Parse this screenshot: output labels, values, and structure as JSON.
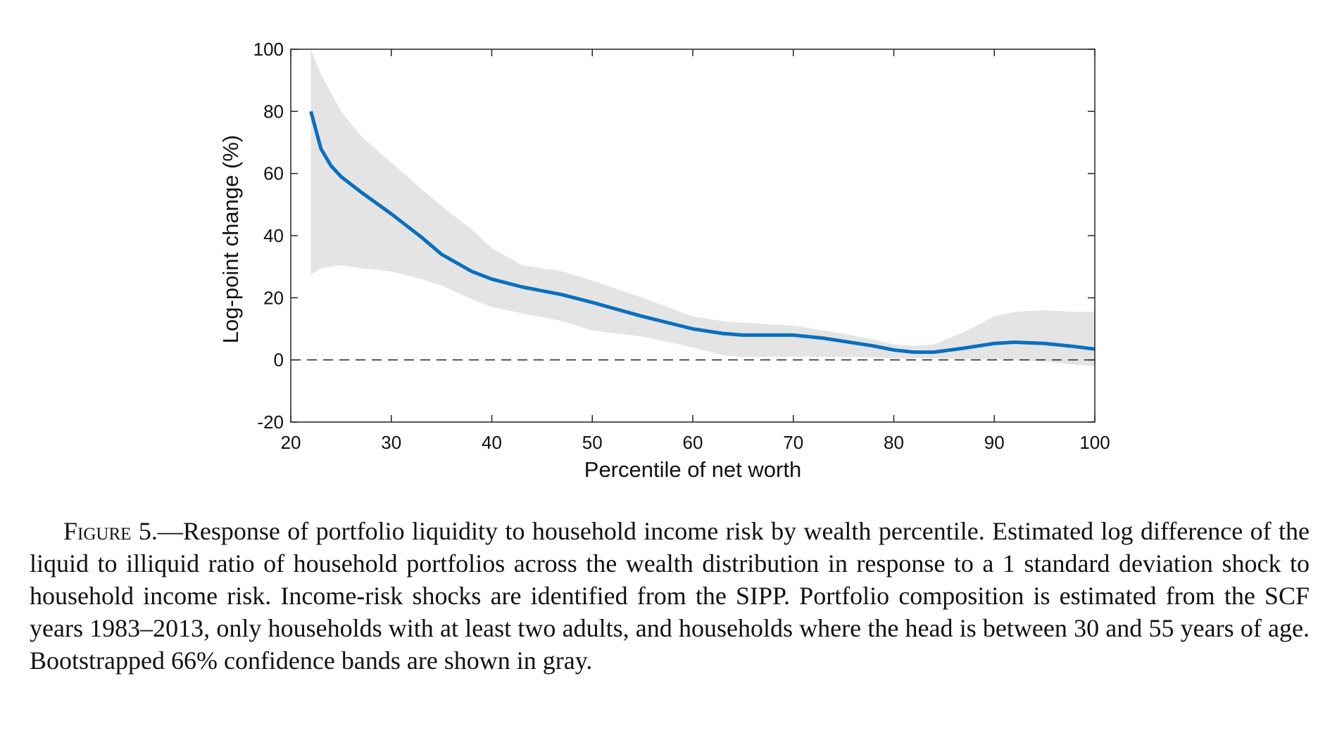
{
  "chart_data": {
    "type": "line",
    "xlabel": "Percentile of net worth",
    "ylabel": "Log-point change (%)",
    "x": [
      22,
      23,
      24,
      25,
      27,
      30,
      33,
      35,
      38,
      40,
      43,
      47,
      50,
      55,
      60,
      63,
      65,
      70,
      73,
      75,
      78,
      80,
      82,
      84,
      87,
      90,
      92,
      95,
      98,
      100
    ],
    "series": [
      {
        "color": "#0a6fbd",
        "values": [
          80,
          68,
          62.5,
          59,
          54,
          47,
          39.5,
          34,
          28.5,
          26,
          23.5,
          21,
          18.5,
          14,
          10,
          8.5,
          8,
          8,
          7,
          6,
          4.5,
          3.2,
          2.5,
          2.5,
          3.8,
          5.3,
          5.7,
          5.3,
          4.3,
          3.5
        ]
      }
    ],
    "band": {
      "color": "#e4e4e4",
      "upper": [
        100,
        92,
        86,
        80,
        72,
        63.5,
        55,
        49.5,
        42,
        36,
        30.5,
        28.5,
        25.5,
        20,
        14,
        12.5,
        12,
        11,
        9.5,
        8.5,
        6.5,
        5,
        4.5,
        5,
        9,
        14,
        15.5,
        16,
        15.5,
        15.5
      ],
      "lower": [
        27.5,
        29.5,
        30,
        30.5,
        29.5,
        28.5,
        26,
        24,
        19.5,
        17,
        15,
        12.5,
        9.5,
        7.5,
        4,
        1.5,
        1,
        1,
        1,
        1,
        0.8,
        0.5,
        0.5,
        0.5,
        0.3,
        0.2,
        0,
        -0.5,
        -1.5,
        -2
      ]
    },
    "reference_line": 0,
    "xlim": [
      20,
      100
    ],
    "xticks": [
      20,
      30,
      40,
      50,
      60,
      70,
      80,
      90,
      100
    ],
    "ylim": [
      -20,
      100
    ],
    "yticks": [
      -20,
      0,
      20,
      40,
      60,
      80,
      100
    ]
  },
  "caption": {
    "label": "Figure 5.",
    "text": "—Response of portfolio liquidity to household income risk by wealth percentile. Estimated log difference of the liquid to illiquid ratio of household portfolios across the wealth distribution in response to a 1 standard deviation shock to household income risk. Income-risk shocks are identified from the SIPP. Portfolio composition is estimated from the SCF years 1983–2013, only households with at least two adults, and households where the head is between 30 and 55 years of age. Bootstrapped 66% confidence bands are shown in gray."
  }
}
